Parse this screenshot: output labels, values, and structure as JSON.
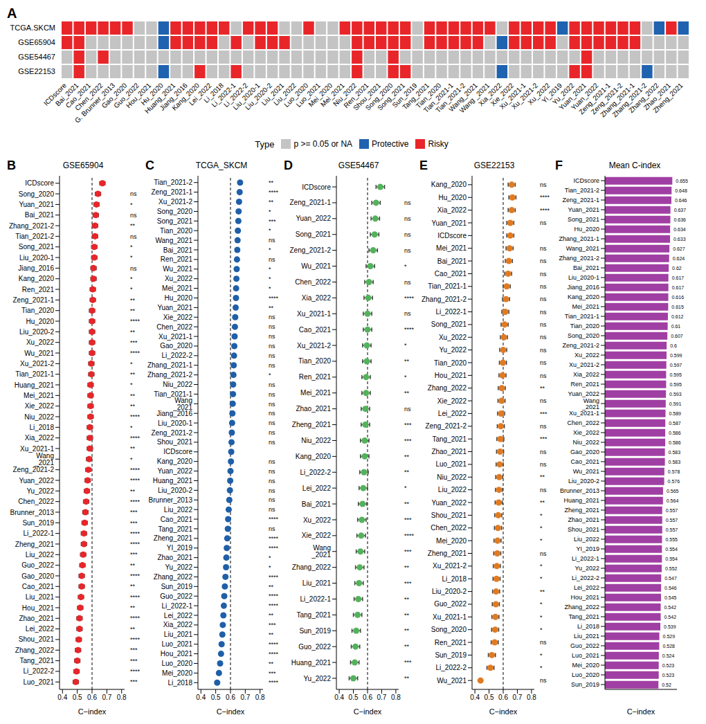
{
  "chart_data": [
    {
      "type": "heatmap",
      "annotations": [
        "A"
      ],
      "legend_title": "Type",
      "x": [
        "ICDscore",
        "Bai_2021",
        "Cao_2021",
        "Chen_2022",
        "G. Brunner_2013",
        "Gao_2020",
        "Guo_2022",
        "Hou_2021",
        "Hu_2020",
        "Huang_2021",
        "Jiang_2016",
        "Kang_2020",
        "Lei_2022",
        "Li_2018",
        "Li_2022-1",
        "Li_2022-2",
        "Liu_2020-1",
        "Liu_2020-2",
        "Liu_2021",
        "Liu_2022",
        "Luo_2020",
        "Luo_2021",
        "Mei_2020",
        "Mei_2021",
        "Niu_2022",
        "Ren_2021",
        "Shou_2021",
        "Song_2020",
        "Song_2021",
        "Sun_2019",
        "Tang_2021",
        "Tian_2020",
        "Tian_2021-1",
        "Tian_2021-2",
        "Wang_2021",
        "Wang _2021",
        "Xia_2022",
        "Xie_2022",
        "Xu_2021-1",
        "Xu_2021-2",
        "Xu_2022",
        "Yi_2019",
        "Yu_2022",
        "Yuan_2021",
        "Yuan_2022",
        "Zeng_2021-1",
        "Zeng_2021-2",
        "Zhang_2021-1",
        "Zhang_2021-2",
        "Zhang_2022",
        "Zhao_2021",
        "Zheng_2021"
      ],
      "y": [
        "TCGA.SKCM",
        "GSE65904",
        "GSE54467",
        "GSE22153"
      ],
      "levels": [
        {
          "label": "p >= 0.05 or NA",
          "color": "#c4c4c4"
        },
        {
          "label": "Protective",
          "color": "#1f62b0"
        },
        {
          "label": "Risky",
          "color": "#e8262a"
        }
      ],
      "cells": [
        [
          2,
          2,
          2,
          2,
          2,
          2,
          0,
          0,
          1,
          2,
          2,
          2,
          2,
          2,
          0,
          2,
          2,
          2,
          0,
          0,
          2,
          0,
          0,
          2,
          2,
          2,
          2,
          2,
          2,
          0,
          2,
          2,
          2,
          2,
          2,
          2,
          0,
          2,
          2,
          2,
          2,
          1,
          2,
          2,
          2,
          2,
          2,
          2,
          0,
          1,
          2,
          1
        ],
        [
          2,
          2,
          0,
          0,
          0,
          0,
          0,
          0,
          1,
          2,
          2,
          2,
          2,
          0,
          2,
          0,
          2,
          2,
          2,
          0,
          0,
          0,
          0,
          0,
          2,
          2,
          2,
          2,
          2,
          0,
          2,
          2,
          2,
          2,
          2,
          0,
          1,
          2,
          2,
          2,
          2,
          0,
          2,
          2,
          2,
          2,
          2,
          2,
          0,
          0,
          0,
          0
        ],
        [
          0,
          2,
          0,
          2,
          0,
          0,
          0,
          0,
          0,
          0,
          0,
          0,
          0,
          0,
          0,
          0,
          0,
          0,
          0,
          0,
          0,
          0,
          0,
          0,
          2,
          0,
          0,
          2,
          0,
          0,
          0,
          0,
          0,
          0,
          0,
          0,
          0,
          0,
          0,
          0,
          0,
          0,
          0,
          2,
          0,
          0,
          0,
          0,
          0,
          0,
          0,
          0
        ],
        [
          0,
          2,
          0,
          0,
          0,
          0,
          0,
          0,
          1,
          0,
          0,
          2,
          0,
          0,
          2,
          0,
          0,
          0,
          0,
          0,
          0,
          0,
          0,
          0,
          2,
          0,
          0,
          2,
          2,
          0,
          0,
          0,
          0,
          0,
          0,
          0,
          1,
          0,
          0,
          0,
          0,
          0,
          2,
          2,
          0,
          0,
          0,
          0,
          1,
          0,
          0,
          0
        ]
      ]
    },
    {
      "type": "dot",
      "annotations": [
        "B"
      ],
      "title": "GSE65904",
      "xlabel": "C−index",
      "color": "#e8262a",
      "xlim": [
        0.38,
        0.82
      ],
      "xticks": [
        0.4,
        0.5,
        0.6,
        0.7,
        0.8
      ],
      "reference_line": 0.6,
      "categories": [
        "ICDscore",
        "Song_2020",
        "Yuan_2021",
        "Bai_2021",
        "Zhang_2021-2",
        "Tian_2021-2",
        "Song_2021",
        "Liu_2020-1",
        "Jiang_2016",
        "Kang_2020",
        "Ren_2021",
        "Zeng_2021-1",
        "Tian_2020",
        "Hu_2020",
        "Liu_2020-2",
        "Xu_2022",
        "Wu_2021",
        "Xu_2021-2",
        "Tian_2021-1",
        "Huang_2021",
        "Mei_2021",
        "Xie_2022",
        "Niu_2022",
        "Li_2018",
        "Xia_2022",
        "Xu_2021-1",
        "Wang _2021",
        "Zeng_2021-2",
        "Yuan_2022",
        "Yu_2022",
        "Chen_2022",
        "Brunner_2013",
        "Sun_2019",
        "Li_2022-1",
        "Zheng_2021",
        "Liu_2022",
        "Guo_2022",
        "Gao_2020",
        "Cao_2021",
        "Liu_2021",
        "Hou_2021",
        "Zhao_2021",
        "Lei_2022",
        "Shou_2021",
        "Zhang_2022",
        "Tang_2021",
        "Li_2022-2",
        "Luo_2021"
      ],
      "values": [
        0.67,
        0.64,
        0.63,
        0.625,
        0.62,
        0.62,
        0.615,
        0.615,
        0.61,
        0.61,
        0.605,
        0.605,
        0.6,
        0.6,
        0.6,
        0.6,
        0.6,
        0.595,
        0.595,
        0.59,
        0.59,
        0.59,
        0.59,
        0.585,
        0.585,
        0.585,
        0.58,
        0.575,
        0.57,
        0.565,
        0.56,
        0.555,
        0.55,
        0.545,
        0.545,
        0.54,
        0.535,
        0.53,
        0.53,
        0.525,
        0.52,
        0.515,
        0.515,
        0.51,
        0.505,
        0.5,
        0.495,
        0.49
      ],
      "errors": [
        0.018,
        0.018,
        0.018,
        0.018,
        0.018,
        0.018,
        0.018,
        0.018,
        0.018,
        0.018,
        0.018,
        0.018,
        0.018,
        0.018,
        0.018,
        0.018,
        0.018,
        0.018,
        0.018,
        0.018,
        0.018,
        0.018,
        0.018,
        0.018,
        0.018,
        0.018,
        0.018,
        0.018,
        0.018,
        0.018,
        0.018,
        0.018,
        0.018,
        0.018,
        0.018,
        0.018,
        0.018,
        0.018,
        0.018,
        0.018,
        0.018,
        0.018,
        0.018,
        0.018,
        0.018,
        0.018,
        0.018,
        0.018
      ],
      "significance": [
        null,
        "ns",
        "*",
        "ns",
        "**",
        "ns",
        "*",
        "*",
        "ns",
        "*",
        "*",
        "**",
        "**",
        "****",
        "**",
        "***",
        "****",
        "*",
        "**",
        "*",
        "**",
        "**",
        "****",
        "*",
        "****",
        "**",
        "*",
        "****",
        "****",
        "**",
        "****",
        "***",
        "***",
        "****",
        "****",
        "***",
        "**",
        "****",
        "**",
        "****",
        "**",
        "****",
        "**",
        "****",
        "***",
        "***",
        "****",
        "***"
      ]
    },
    {
      "type": "dot",
      "annotations": [
        "C"
      ],
      "title": "TCGA_SKCM",
      "xlabel": "C−index",
      "color": "#1f5fa8",
      "xlim": [
        0.38,
        0.82
      ],
      "xticks": [
        0.4,
        0.5,
        0.6,
        0.7,
        0.8
      ],
      "reference_line": 0.6,
      "categories": [
        "Tian_2021-2",
        "Zeng_2021-1",
        "Xu_2021-2",
        "Song_2020",
        "Song_2021",
        "Tian_2020",
        "Wang_2021",
        "Bai_2021",
        "Ren_2021",
        "Wu_2021",
        "Xu_2022",
        "Mei_2021",
        "Hu_2020",
        "Yuan_2021",
        "Xie_2022",
        "Chen_2022",
        "Xu_2021-1",
        "Gao_2020",
        "Li_2022-2",
        "Zhang_2021-1",
        "Zhang_2021-2",
        "Niu_2022",
        "Tian_2021-1",
        "Wang _2021",
        "Jiang_2016",
        "Liu_2020-1",
        "Zeng_2021-2",
        "Shou_2021",
        "ICDscore",
        "Kang_2020",
        "Yuan_2022",
        "Huang_2021",
        "Liu_2020-2",
        "Brunner_2013",
        "Liu_2022",
        "Cao_2021",
        "Tang_2021",
        "Zheng_2021",
        "YI_2019",
        "Zhao_2021",
        "Yu_2022",
        "Zhang_2022",
        "Sun_2019",
        "Guo_2022",
        "Li_2022-1",
        "Lei_2022",
        "Xia_2022",
        "Liu_2021",
        "Luo_2021",
        "Hou_2021",
        "Luo_2020",
        "Mei_2020",
        "Li_2018"
      ],
      "values": [
        0.665,
        0.662,
        0.658,
        0.655,
        0.653,
        0.65,
        0.648,
        0.646,
        0.644,
        0.642,
        0.64,
        0.638,
        0.637,
        0.635,
        0.632,
        0.63,
        0.628,
        0.626,
        0.624,
        0.622,
        0.62,
        0.618,
        0.617,
        0.615,
        0.613,
        0.611,
        0.609,
        0.607,
        0.605,
        0.603,
        0.6,
        0.598,
        0.596,
        0.592,
        0.588,
        0.584,
        0.582,
        0.578,
        0.575,
        0.572,
        0.57,
        0.566,
        0.562,
        0.558,
        0.555,
        0.552,
        0.548,
        0.545,
        0.54,
        0.536,
        0.53,
        0.522,
        0.51
      ],
      "errors": [
        0.012,
        0.012,
        0.012,
        0.012,
        0.012,
        0.012,
        0.012,
        0.012,
        0.012,
        0.012,
        0.012,
        0.012,
        0.012,
        0.012,
        0.012,
        0.012,
        0.012,
        0.012,
        0.012,
        0.012,
        0.012,
        0.012,
        0.012,
        0.012,
        0.012,
        0.012,
        0.012,
        0.012,
        0.012,
        0.012,
        0.012,
        0.012,
        0.012,
        0.012,
        0.012,
        0.012,
        0.012,
        0.012,
        0.012,
        0.012,
        0.012,
        0.012,
        0.012,
        0.012,
        0.012,
        0.012,
        0.012,
        0.012,
        0.012,
        0.012,
        0.012,
        0.012,
        0.012
      ],
      "significance": [
        "**",
        "****",
        "**",
        "*",
        "***",
        "*",
        "ns",
        "*",
        "ns",
        "*",
        "*",
        "*",
        "****",
        "**",
        "ns",
        "ns",
        "ns",
        "ns",
        "ns",
        "ns",
        "*",
        "ns",
        "ns",
        "ns",
        "ns",
        "ns",
        "ns",
        "ns",
        null,
        "ns",
        "ns",
        "ns",
        "ns",
        "ns",
        "ns",
        "****",
        "ns",
        "****",
        "****",
        "*",
        "*",
        "****",
        "**",
        "****",
        "****",
        "**",
        "***",
        "**",
        "****",
        "****",
        "**",
        "***",
        "****"
      ]
    },
    {
      "type": "dot",
      "annotations": [
        "D"
      ],
      "title": "GSE54467",
      "xlabel": "C−index",
      "color": "#53b35b",
      "xlim": [
        0.38,
        0.82
      ],
      "xticks": [
        0.4,
        0.5,
        0.6,
        0.7,
        0.8
      ],
      "reference_line": 0.6,
      "categories": [
        "ICDscore",
        "Zeng_2021-1",
        "Yuan_2022",
        "Song_2021",
        "Zeng_2021-2",
        "Wu_2021",
        "Chen_2022",
        "Xia_2022",
        "Xu_2021-1",
        "Cao_2021",
        "Xu_2021-2",
        "Tian_2020",
        "Ren_2021",
        "Mei_2021",
        "Zhao_2021",
        "Zheng_2021",
        "Niu_2022",
        "Kang_2020",
        "Li_2022-2",
        "Lei_2022",
        "Bai_2021",
        "Xu_2022",
        "Xie_2022",
        "Wang _2021",
        "Zhang_2022",
        "Liu_2021",
        "Li_2022-1",
        "Tang_2021",
        "Sun_2019",
        "Guo_2022",
        "Huang_2021",
        "Yu_2022"
      ],
      "values": [
        0.69,
        0.66,
        0.655,
        0.65,
        0.64,
        0.62,
        0.61,
        0.605,
        0.6,
        0.6,
        0.595,
        0.595,
        0.59,
        0.59,
        0.585,
        0.585,
        0.58,
        0.58,
        0.575,
        0.57,
        0.565,
        0.56,
        0.555,
        0.55,
        0.545,
        0.54,
        0.535,
        0.53,
        0.52,
        0.515,
        0.51,
        0.5
      ],
      "errors": [
        0.03,
        0.03,
        0.03,
        0.03,
        0.03,
        0.03,
        0.03,
        0.03,
        0.03,
        0.03,
        0.03,
        0.03,
        0.03,
        0.03,
        0.03,
        0.03,
        0.03,
        0.03,
        0.03,
        0.03,
        0.03,
        0.03,
        0.03,
        0.03,
        0.03,
        0.03,
        0.03,
        0.03,
        0.03,
        0.03,
        0.03,
        0.03
      ],
      "significance": [
        null,
        "ns",
        "ns",
        "ns",
        "ns",
        "*",
        "ns",
        "****",
        "ns",
        "****",
        "*",
        "**",
        "*",
        "**",
        "ns",
        "***",
        "***",
        "**",
        "**",
        "*",
        "**",
        "***",
        "****",
        "***",
        "**",
        "***",
        "**",
        "**",
        "**",
        "**",
        "***",
        "**"
      ]
    },
    {
      "type": "dot",
      "annotations": [
        "E"
      ],
      "title": "GSE22153",
      "xlabel": "C−index",
      "color": "#e07b22",
      "xlim": [
        0.38,
        0.82
      ],
      "xticks": [
        0.4,
        0.5,
        0.6,
        0.7,
        0.8
      ],
      "reference_line": 0.6,
      "categories": [
        "Kang_2020",
        "Hu_2020",
        "Xia_2022",
        "Yuan_2021",
        "ICDscore",
        "Mei_2021",
        "Bai_2021",
        "Cao_2021",
        "Tian_2021-1",
        "Zhang_2021-2",
        "Li_2022-1",
        "Song_2021",
        "Xu_2022",
        "Yu_2022",
        "Tian_2020",
        "Hou_2021",
        "Zhang_2022",
        "Xie_2022",
        "Lei_2022",
        "Zeng_2021-2",
        "Tang_2021",
        "Zhao_2021",
        "Luo_2021",
        "Niu_2022",
        "Liu_2022",
        "Yuan_2022",
        "Shou_2021",
        "Chen_2022",
        "Mei_2020",
        "Zheng_2021",
        "Xu_2021-2",
        "Li_2018",
        "Liu_2020-2",
        "Guo_2022",
        "Xu_2021-1",
        "Song_2020",
        "Ren_2021",
        "Sun_2019",
        "Li_2022-2",
        "Wu_2021"
      ],
      "values": [
        0.66,
        0.665,
        0.66,
        0.65,
        0.65,
        0.645,
        0.64,
        0.635,
        0.625,
        0.62,
        0.615,
        0.61,
        0.605,
        0.6,
        0.598,
        0.595,
        0.59,
        0.588,
        0.585,
        0.583,
        0.58,
        0.578,
        0.575,
        0.572,
        0.57,
        0.568,
        0.565,
        0.563,
        0.56,
        0.558,
        0.555,
        0.553,
        0.55,
        0.548,
        0.545,
        0.543,
        0.54,
        0.52,
        0.51,
        0.44
      ],
      "errors": [
        0.025,
        0.025,
        0.025,
        0.025,
        0.025,
        0.025,
        0.025,
        0.025,
        0.025,
        0.025,
        0.025,
        0.025,
        0.025,
        0.025,
        0.025,
        0.025,
        0.025,
        0.025,
        0.025,
        0.025,
        0.025,
        0.025,
        0.025,
        0.025,
        0.025,
        0.025,
        0.025,
        0.025,
        0.025,
        0.025,
        0.025,
        0.025,
        0.025,
        0.025,
        0.025,
        0.025,
        0.025,
        0.025,
        0.025,
        null
      ],
      "significance": [
        "ns",
        "****",
        "****",
        "ns",
        null,
        "ns",
        "ns",
        "ns",
        "ns",
        "ns",
        "ns",
        "ns",
        "ns",
        "ns",
        "ns",
        "ns",
        "**",
        "ns",
        "***",
        "ns",
        "***",
        "ns",
        "ns",
        "**",
        "ns",
        "**",
        "*",
        "*",
        "*",
        "ns",
        "*",
        "*",
        "**",
        "*",
        "*",
        "*",
        "ns",
        "*",
        "*",
        "ns"
      ]
    },
    {
      "type": "bar",
      "annotations": [
        "F"
      ],
      "title": "Mean C-index",
      "xlabel": "C−index",
      "orientation": "horizontal",
      "color": "#a03fa3",
      "xlim": [
        0,
        0.7
      ],
      "data_labels": true,
      "tick_labels": "y",
      "categories": [
        "ICDscore",
        "Tian_2021-2",
        "Zeng_2021-1",
        "Yuan_2021",
        "Song_2021",
        "Hu_2020",
        "Zhang_2021-1",
        "Wang_2021",
        "Zhang_2021-2",
        "Bai_2021",
        "Liu_2020-1",
        "Jiang_2016",
        "Kang_2020",
        "Mei_2021",
        "Tian_2021-1",
        "Tian_2020",
        "Song_2020",
        "Zeng_2021-2",
        "Xu_2022",
        "Xu_2021-2",
        "Xia_2022",
        "Ren_2021",
        "Yuan_2022",
        "Wang _2021",
        "Xu_2021-1",
        "Chen_2022",
        "Xie_2022",
        "Niu_2022",
        "Gao_2020",
        "Cao_2021",
        "Wu_2021",
        "Liu_2020-2",
        "Brunner_2013",
        "Huang_2021",
        "Zheng_2021",
        "Zhao_2021",
        "Shou_2021",
        "Liu_2022",
        "YI_2019",
        "Li_2022-1",
        "Yu_2022",
        "Li_2022-2",
        "Lei_2022",
        "Hou_2021",
        "Zhang_2022",
        "Tang_2021",
        "Li_2018",
        "Liu_2021",
        "Guo_2022",
        "Luo_2021",
        "Mei_2020",
        "Luo_2020",
        "Sun_2019"
      ],
      "values": [
        0.655,
        0.648,
        0.646,
        0.637,
        0.636,
        0.634,
        0.633,
        0.627,
        0.624,
        0.62,
        0.617,
        0.617,
        0.616,
        0.615,
        0.612,
        0.61,
        0.607,
        0.6,
        0.599,
        0.597,
        0.595,
        0.595,
        0.593,
        0.591,
        0.589,
        0.587,
        0.586,
        0.586,
        0.583,
        0.583,
        0.578,
        0.576,
        0.565,
        0.564,
        0.557,
        0.557,
        0.557,
        0.555,
        0.554,
        0.554,
        0.552,
        0.547,
        0.546,
        0.545,
        0.542,
        0.542,
        0.539,
        0.529,
        0.528,
        0.524,
        0.523,
        0.523,
        0.52
      ]
    }
  ]
}
